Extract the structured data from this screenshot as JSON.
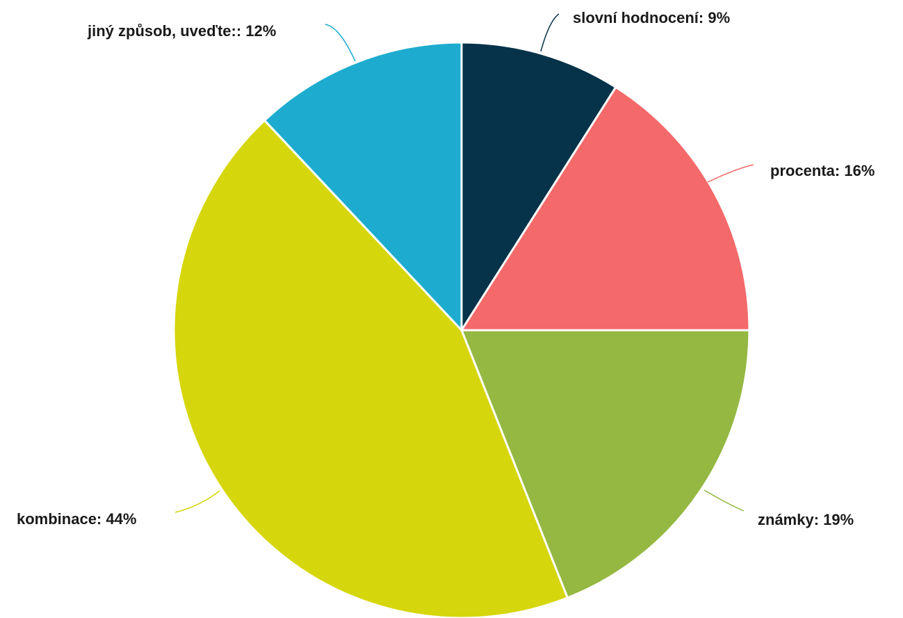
{
  "chart_data": {
    "type": "pie",
    "start_angle_deg": 0,
    "direction": "clockwise",
    "slices": [
      {
        "name": "slovní hodnocení",
        "value": 9,
        "label": "slovní hodnocení: 9%",
        "color": "#063349"
      },
      {
        "name": "procenta",
        "value": 16,
        "label": "procenta: 16%",
        "color": "#F4696A"
      },
      {
        "name": "známky",
        "value": 19,
        "label": "známky: 19%",
        "color": "#94B841"
      },
      {
        "name": "kombinace",
        "value": 44,
        "label": "kombinace: 44%",
        "color": "#D6D60C"
      },
      {
        "name": "jiný způsob, uveďte:",
        "value": 12,
        "label": "jiný způsob, uveďte:: 12%",
        "color": "#1DACCF"
      }
    ],
    "legend": "none",
    "label_style": "outside with leader lines"
  }
}
